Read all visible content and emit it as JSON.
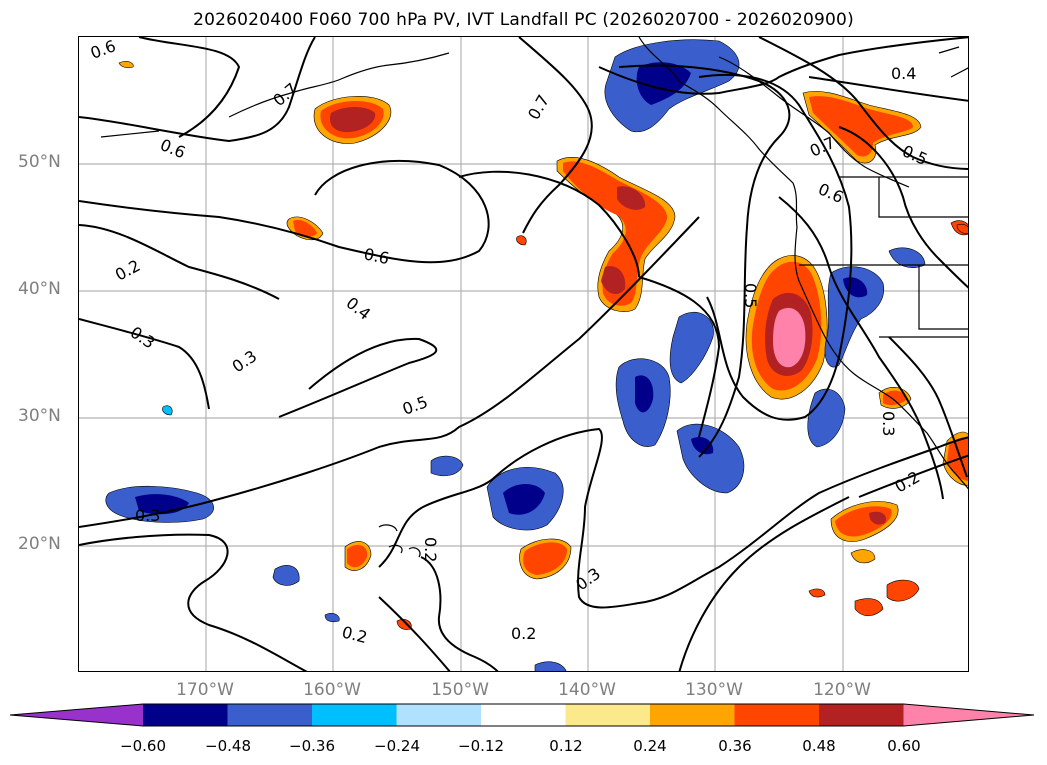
{
  "title": "2026020400 F060 700 hPa PV, IVT Landfall PC (2026020700 - 2026020900)",
  "lat_labels": [
    "50°N",
    "40°N",
    "30°N",
    "20°N"
  ],
  "lon_labels": [
    "170°W",
    "160°W",
    "150°W",
    "140°W",
    "130°W",
    "120°W"
  ],
  "contour_labels": [
    "0.6",
    "0.7",
    "0.6",
    "0.6",
    "0.4",
    "0.2",
    "0.3",
    "0.3",
    "0.5",
    "0.3",
    "0.2",
    "0.2",
    "0.3",
    "0.2",
    "0.7",
    "0.4",
    "0.7",
    "0.5",
    "0.6",
    "0.5",
    "0.2",
    "0.3"
  ],
  "colorbar": {
    "ticks": [
      "−0.60",
      "−0.48",
      "−0.36",
      "−0.24",
      "−0.12",
      "0.12",
      "0.24",
      "0.36",
      "0.48",
      "0.60"
    ],
    "colors": [
      "#9932cc",
      "#00008b",
      "#3a5fcd",
      "#00bfff",
      "#b0e2ff",
      "#ffffff",
      "#fce98c",
      "#ffa500",
      "#ff4500",
      "#b22222",
      "#ff82ab"
    ]
  }
}
